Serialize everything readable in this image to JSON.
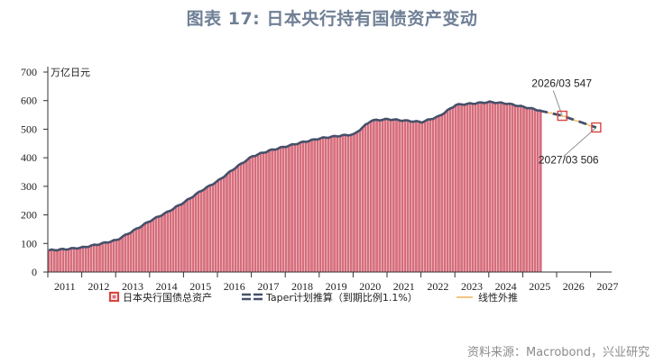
{
  "header": {
    "title": "图表 17: 日本央行持有国债资产变动"
  },
  "footer": {
    "source": "资料来源：Macrobond，兴业研究"
  },
  "chart_data": {
    "type": "bar",
    "title": "图表 17: 日本央行持有国债资产变动",
    "ylabel": "万亿日元",
    "xlabel": "",
    "ylim": [
      0,
      700
    ],
    "yticks": [
      0,
      100,
      200,
      300,
      400,
      500,
      600,
      700
    ],
    "xticks": [
      "2011",
      "2012",
      "2013",
      "2014",
      "2015",
      "2016",
      "2017",
      "2018",
      "2019",
      "2020",
      "2021",
      "2022",
      "2023",
      "2024",
      "2025",
      "2026",
      "2027"
    ],
    "xrange": [
      "2011-01",
      "2027-06"
    ],
    "legend": [
      "日本央行国债总资产",
      "Taper计划推算（到期比例1.1%）",
      "线性外推"
    ],
    "legend_position": "bottom",
    "grid": false,
    "colors": {
      "bars": "#d9707e",
      "bar_edge": "#c23a4e",
      "line": "#46506a",
      "taper": "#46506a",
      "linear": "#f0b35a",
      "marker": "#d9453f"
    },
    "series": [
      {
        "name": "日本央行国债总资产",
        "type": "bar",
        "note": "semi-annual sampled values (万亿日元), Jan/Jul each year",
        "x": [
          "2011-01",
          "2011-07",
          "2012-01",
          "2012-07",
          "2013-01",
          "2013-07",
          "2014-01",
          "2014-07",
          "2015-01",
          "2015-07",
          "2016-01",
          "2016-07",
          "2017-01",
          "2017-07",
          "2018-01",
          "2018-07",
          "2019-01",
          "2019-07",
          "2020-01",
          "2020-07",
          "2021-01",
          "2021-07",
          "2022-01",
          "2022-07",
          "2023-01",
          "2023-07",
          "2024-01",
          "2024-07",
          "2025-01",
          "2025-07"
        ],
        "values": [
          76,
          80,
          86,
          98,
          112,
          145,
          180,
          210,
          245,
          285,
          320,
          365,
          405,
          425,
          440,
          455,
          468,
          476,
          482,
          530,
          535,
          530,
          525,
          545,
          585,
          590,
          595,
          590,
          578,
          565
        ]
      },
      {
        "name": "Taper计划推算（到期比例1.1%）",
        "type": "line-dashed",
        "x": [
          "2025-07",
          "2026-03",
          "2027-03"
        ],
        "values": [
          565,
          547,
          506
        ]
      },
      {
        "name": "线性外推",
        "type": "line",
        "x": [
          "2025-07",
          "2026-03",
          "2027-03"
        ],
        "values": [
          565,
          547,
          506
        ]
      }
    ],
    "annotations": [
      {
        "label": "2026/03  547",
        "x": "2026-03",
        "y": 547
      },
      {
        "label": "2027/03  506",
        "x": "2027-03",
        "y": 506
      }
    ]
  }
}
